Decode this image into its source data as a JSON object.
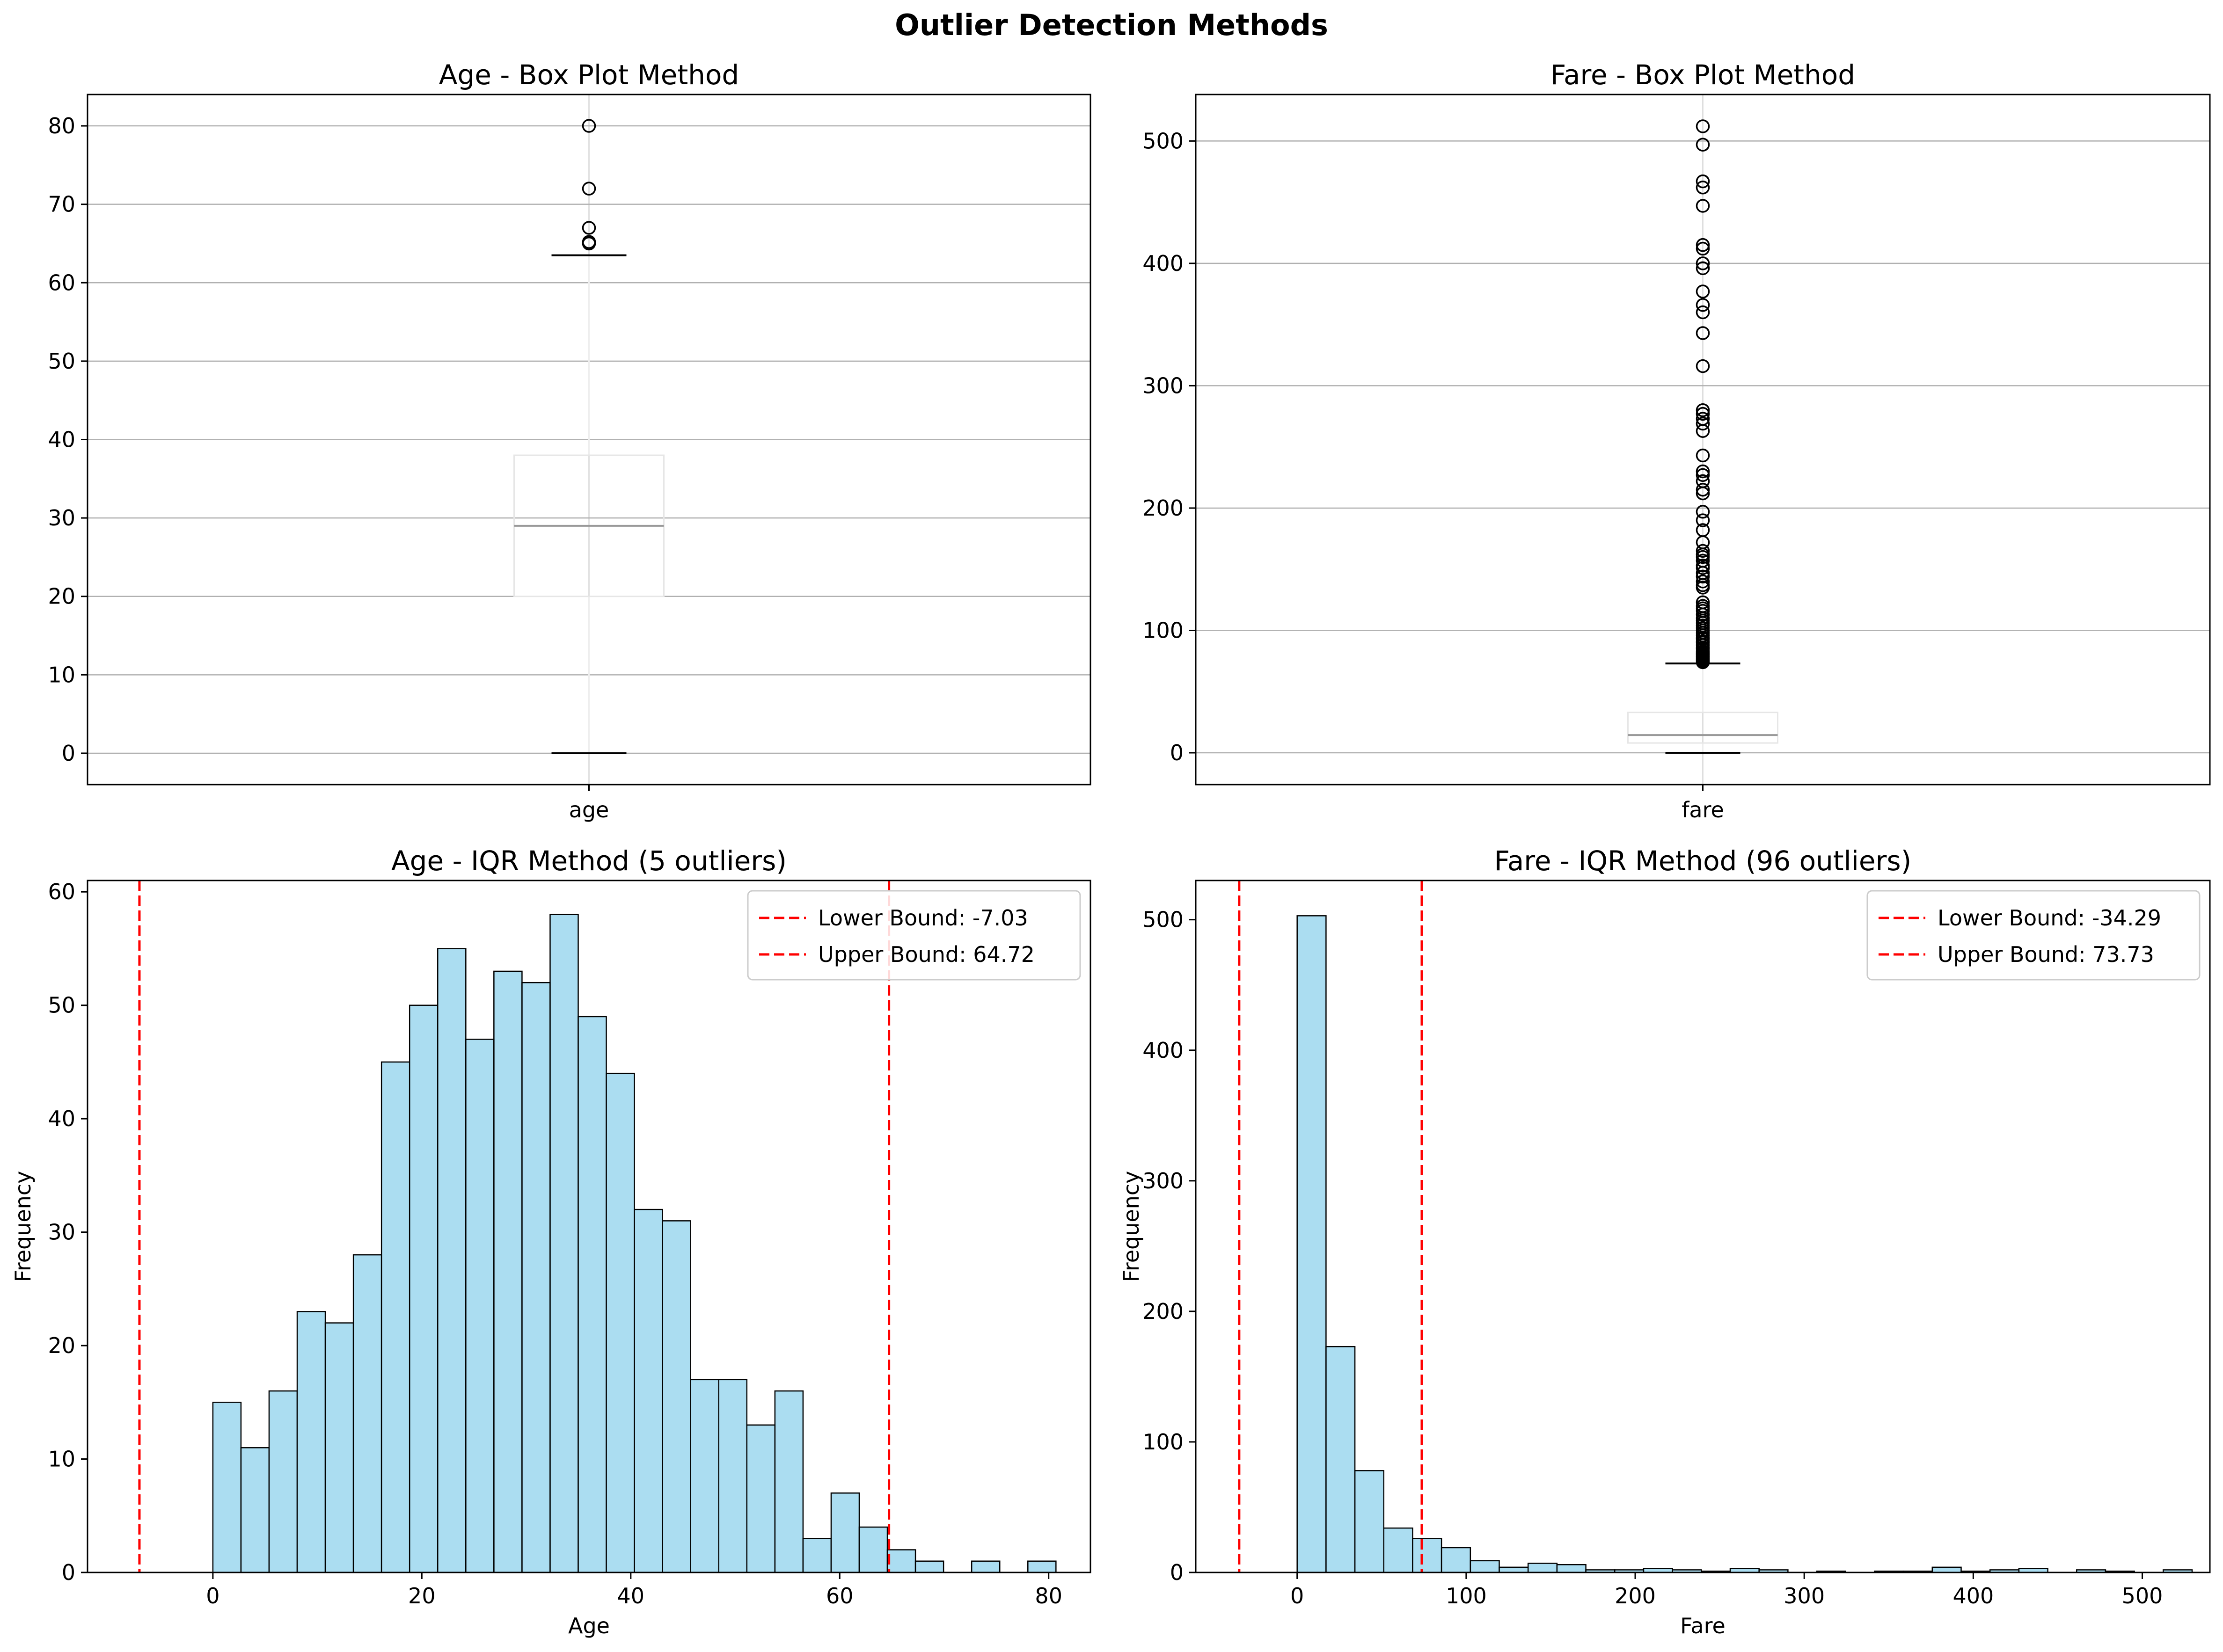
{
  "figure": {
    "suptitle": "Outlier Detection Methods"
  },
  "colors": {
    "bar_fill": "#87ceeb",
    "bar_edge": "#000000",
    "bound_line": "#ff0000",
    "grid": "#b0b0b0"
  },
  "chart_data": [
    {
      "type": "box",
      "title": "Age - Box Plot Method",
      "category": "age",
      "xlabel": "",
      "ylabel": "",
      "ylim": [
        -4,
        84
      ],
      "yticks": [
        0,
        10,
        20,
        30,
        40,
        50,
        60,
        70,
        80
      ],
      "box": {
        "whisker_low": 0,
        "q1": 20,
        "median": 29,
        "q3": 38,
        "whisker_high": 63.5
      },
      "outliers": [
        65,
        65.2,
        67,
        72,
        80
      ],
      "grid": "y"
    },
    {
      "type": "box",
      "title": "Fare - Box Plot Method",
      "category": "fare",
      "xlabel": "",
      "ylabel": "",
      "ylim": [
        -26,
        538
      ],
      "yticks": [
        0,
        100,
        200,
        300,
        400,
        500
      ],
      "box": {
        "whisker_low": 0,
        "q1": 8,
        "median": 14.5,
        "q3": 33,
        "whisker_high": 73
      },
      "outliers": [
        74,
        75,
        76,
        77,
        78,
        79,
        80,
        81,
        82,
        83,
        85,
        86,
        88,
        90,
        91,
        93,
        94,
        96,
        98,
        100,
        102,
        104,
        106,
        108,
        110,
        113,
        116,
        118,
        120,
        123,
        135,
        137,
        140,
        144,
        147,
        151,
        153,
        157,
        160,
        162,
        165,
        172,
        182,
        190,
        197,
        212,
        215,
        222,
        227,
        230,
        243,
        263,
        269,
        273,
        277,
        280,
        316,
        343,
        360,
        366,
        377,
        396,
        400,
        412,
        415,
        447,
        462,
        467,
        497,
        512
      ],
      "grid": "y"
    },
    {
      "type": "bar",
      "title": "Age - IQR Method (5 outliers)",
      "xlabel": "Age",
      "ylabel": "Frequency",
      "xlim": [
        -12,
        84
      ],
      "ylim": [
        0,
        61
      ],
      "xticks": [
        0,
        20,
        40,
        60,
        80
      ],
      "yticks": [
        0,
        10,
        20,
        30,
        40,
        50,
        60
      ],
      "bin_start": 0,
      "bin_width": 2.69,
      "values": [
        15,
        11,
        16,
        23,
        22,
        28,
        45,
        50,
        55,
        47,
        53,
        52,
        58,
        49,
        44,
        32,
        31,
        17,
        17,
        13,
        16,
        3,
        7,
        4,
        2,
        1,
        0,
        1,
        0,
        1
      ],
      "bounds": [
        {
          "value": -7.03,
          "label": "Lower Bound: -7.03"
        },
        {
          "value": 64.72,
          "label": "Upper Bound: 64.72"
        }
      ],
      "legend": "top-right",
      "grid": "none"
    },
    {
      "type": "bar",
      "title": "Fare - IQR Method (96 outliers)",
      "xlabel": "Fare",
      "ylabel": "Frequency",
      "xlim": [
        -60,
        540
      ],
      "ylim": [
        0,
        530
      ],
      "xticks": [
        0,
        100,
        200,
        300,
        400,
        500
      ],
      "yticks": [
        0,
        100,
        200,
        300,
        400,
        500
      ],
      "bin_start": 0,
      "bin_width": 17.08,
      "values": [
        503,
        173,
        78,
        34,
        26,
        19,
        9,
        4,
        7,
        6,
        2,
        2,
        3,
        2,
        1,
        3,
        2,
        0,
        1,
        0,
        1,
        1,
        4,
        1,
        2,
        3,
        0,
        2,
        1,
        0,
        2
      ],
      "bounds": [
        {
          "value": -34.29,
          "label": "Lower Bound: -34.29"
        },
        {
          "value": 73.73,
          "label": "Upper Bound: 73.73"
        }
      ],
      "legend": "top-right",
      "grid": "none"
    }
  ]
}
